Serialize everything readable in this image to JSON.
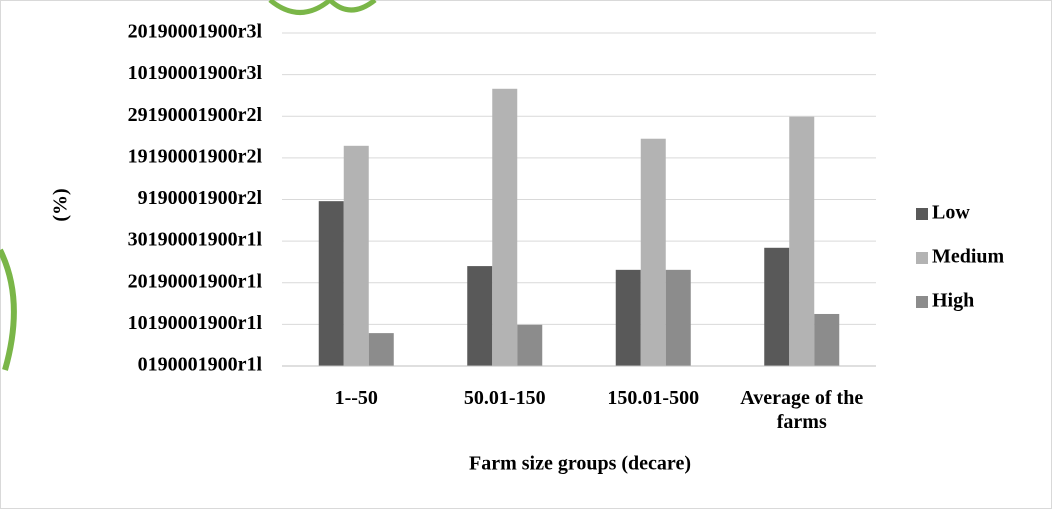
{
  "chart_data": {
    "type": "bar",
    "x_label": "Farm size groups (decare)",
    "y_label": "(%)",
    "categories": [
      "1--50",
      "50.01-150",
      "150.01-500",
      "Average of the farms"
    ],
    "series": [
      {
        "name": "Low",
        "color": "#595959",
        "values": [
          39.6,
          24.0,
          23.1,
          28.4
        ]
      },
      {
        "name": "Medium",
        "color": "#b3b3b3",
        "values": [
          52.9,
          66.6,
          54.6,
          59.9
        ]
      },
      {
        "name": "High",
        "color": "#8c8c8c",
        "values": [
          7.9,
          9.9,
          23.1,
          12.5
        ]
      }
    ],
    "ylim": [
      0,
      80
    ],
    "yticks": [
      {
        "value": 0,
        "label": "0190001900r1l"
      },
      {
        "value": 10,
        "label": "10190001900r1l"
      },
      {
        "value": 20,
        "label": "20190001900r1l"
      },
      {
        "value": 30,
        "label": "30190001900r1l"
      },
      {
        "value": 40,
        "label": "9190001900r2l"
      },
      {
        "value": 50,
        "label": "19190001900r2l"
      },
      {
        "value": 60,
        "label": "29190001900r2l"
      },
      {
        "value": 70,
        "label": "10190001900r3l"
      },
      {
        "value": 80,
        "label": "20190001900r3l"
      }
    ],
    "grid": true,
    "legend": "right"
  }
}
